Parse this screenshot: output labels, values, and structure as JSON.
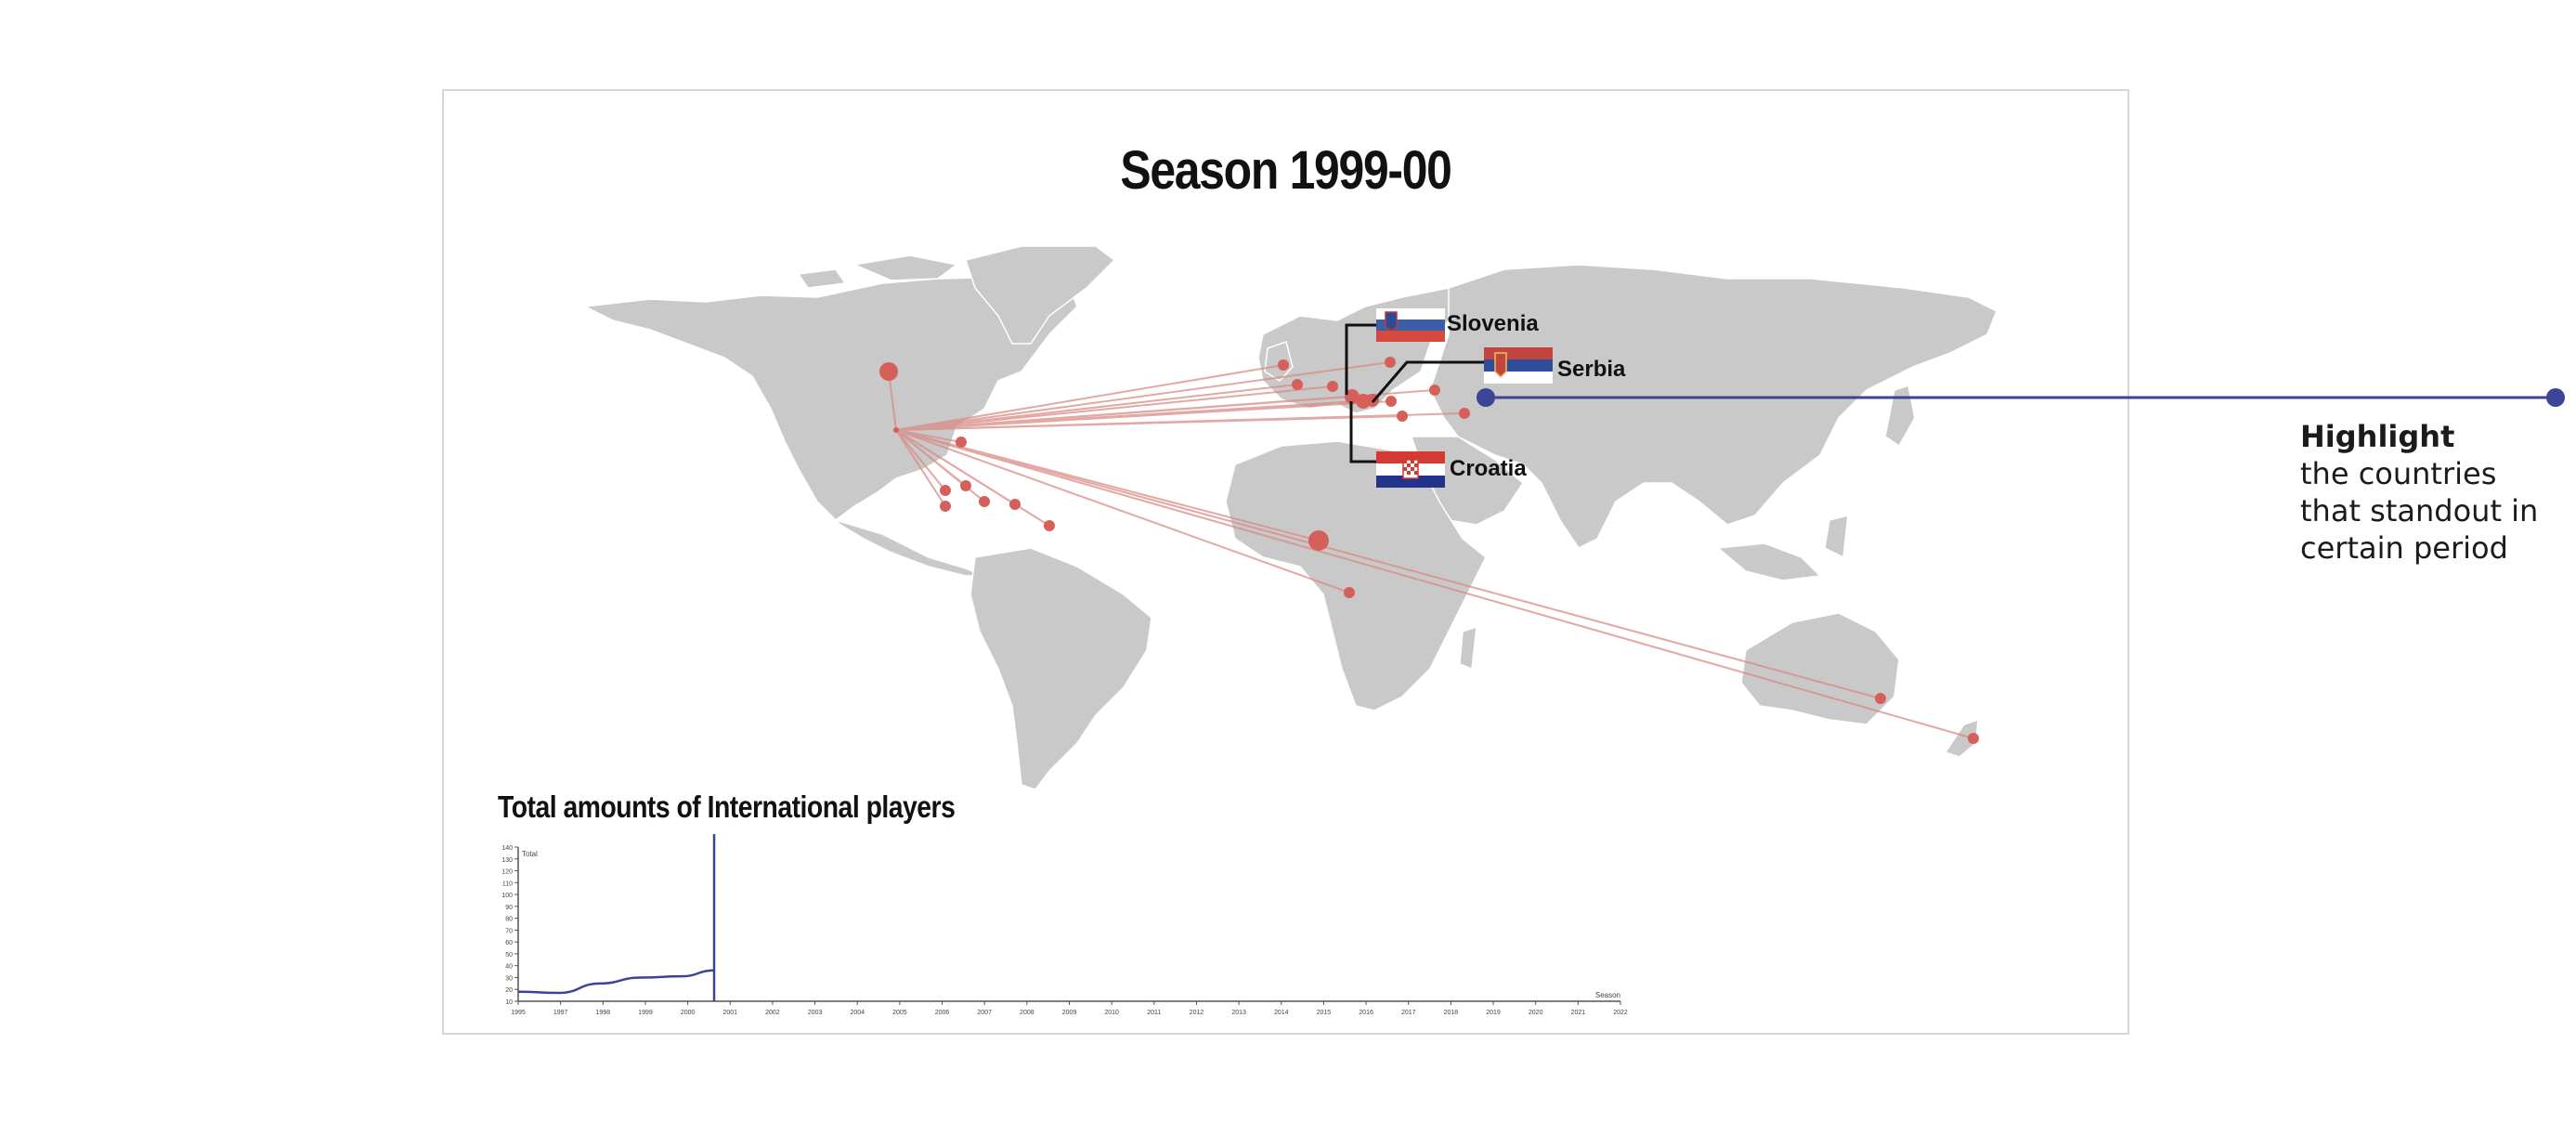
{
  "title": "Season 1999-00",
  "map": {
    "origin_name": "",
    "highlighted_countries": [
      {
        "name": "Slovenia",
        "flag": "slovenia-flag"
      },
      {
        "name": "Serbia",
        "flag": "serbia-flag"
      },
      {
        "name": "Croatia",
        "flag": "croatia-flag"
      }
    ],
    "colors": {
      "land": "#c9c9c9",
      "dots": "#d5605a",
      "lines": "#d98b86",
      "highlight_line": "#3a4596"
    }
  },
  "annotation": {
    "head": "Highlight",
    "lines": [
      "the countries",
      "that standout in",
      "certain period"
    ]
  },
  "chart_title": "Total amounts of International players",
  "chart_data": {
    "type": "line",
    "title": "Total amounts of International players",
    "ylabel": "Total",
    "xlabel": "Season",
    "x_ticks": [
      "1995",
      "1997",
      "1998",
      "1999",
      "2000",
      "2001",
      "2002",
      "2003",
      "2004",
      "2005",
      "2006",
      "2007",
      "2008",
      "2009",
      "2010",
      "2011",
      "2012",
      "2013",
      "2014",
      "2015",
      "2016",
      "2017",
      "2018",
      "2019",
      "2020",
      "2021",
      "2022"
    ],
    "y_ticks": [
      10,
      20,
      30,
      40,
      50,
      60,
      70,
      80,
      90,
      100,
      110,
      120,
      130,
      140
    ],
    "ylim": [
      10,
      140
    ],
    "series": [
      {
        "x": [
          1995,
          1996,
          1997,
          1998,
          1999,
          1999.8
        ],
        "y": [
          18,
          17,
          25,
          30,
          31,
          36
        ]
      }
    ],
    "current_season_marker": 1999.8,
    "color": "#3a4596"
  }
}
